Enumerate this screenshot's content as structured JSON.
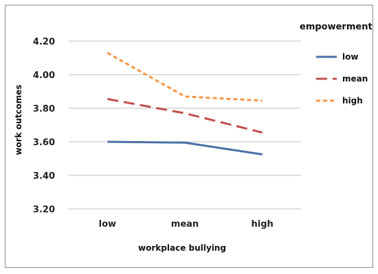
{
  "chart_data": {
    "type": "line",
    "title": "",
    "xlabel": "workplace bullying",
    "ylabel": "work outcomes",
    "categories": [
      "low",
      "mean",
      "high"
    ],
    "ylim": [
      3.2,
      4.2
    ],
    "yticks": [
      "3.20",
      "3.40",
      "3.60",
      "3.80",
      "4.00",
      "4.20"
    ],
    "grid": true,
    "legend": {
      "title": "empowerment",
      "placement": "right"
    },
    "series": [
      {
        "name": "low",
        "values": [
          3.6,
          3.595,
          3.525
        ],
        "color": "#4a6fa5",
        "style": "solid"
      },
      {
        "name": "mean",
        "values": [
          3.855,
          3.77,
          3.655
        ],
        "color": "#c0504d",
        "style": "dashed"
      },
      {
        "name": "high",
        "values": [
          4.13,
          3.87,
          3.845
        ],
        "color": "#f79646",
        "style": "dotted"
      }
    ]
  }
}
